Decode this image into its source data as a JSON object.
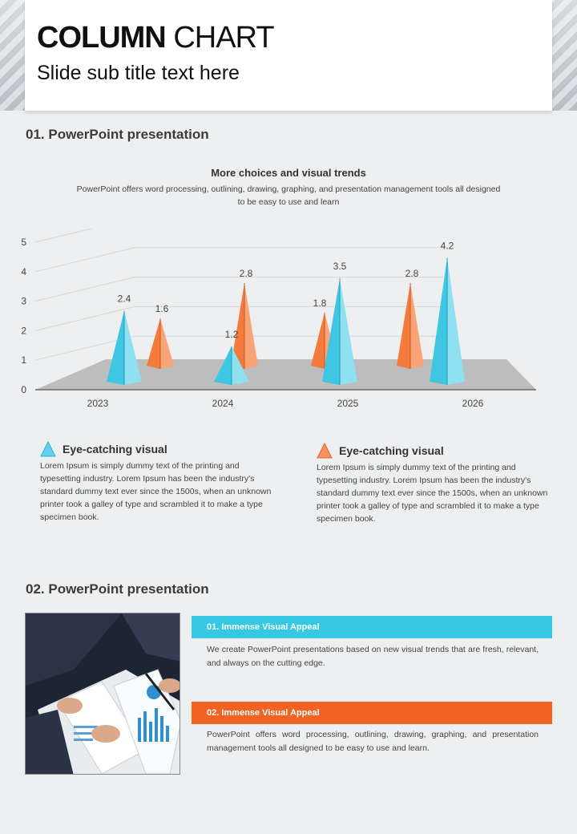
{
  "header": {
    "title_bold": "COLUMN",
    "title_light": "CHART",
    "subtitle": "Slide sub title text here"
  },
  "section1": {
    "heading": "01. PowerPoint presentation",
    "chart_title": "More choices and visual trends",
    "chart_desc": "PowerPoint offers word processing, outlining, drawing, graphing, and presentation management tools all designed to be easy to use and learn"
  },
  "chart_data": {
    "type": "bar",
    "categories": [
      "2023",
      "2024",
      "2025",
      "2026"
    ],
    "series": [
      {
        "values": [
          2.4,
          1.2,
          3.5,
          4.2
        ]
      },
      {
        "values": [
          1.6,
          2.8,
          1.8,
          2.8
        ]
      }
    ],
    "colors": [
      "#3fc8e4",
      "#f47a3c"
    ],
    "ylim": [
      0,
      5
    ],
    "yticks": [
      "0",
      "1",
      "2",
      "3",
      "4",
      "5"
    ],
    "grid": true
  },
  "legends": [
    {
      "heading": "Eye-catching visual",
      "text": "Lorem Ipsum is simply dummy text of the printing and typesetting industry. Lorem Ipsum has been the industry's standard dummy text ever since the 1500s, when an unknown printer took a galley of type and scrambled it to make a type specimen book."
    },
    {
      "heading": "Eye-catching visual",
      "text": "Lorem Ipsum is simply dummy text of the printing and typesetting industry. Lorem Ipsum has been the industry's standard dummy text ever since the 1500s, when an unknown printer took a galley of type and scrambled it to make a type specimen book."
    }
  ],
  "section2": {
    "heading": "02. PowerPoint presentation",
    "items": [
      {
        "title": "01. Immense Visual Appeal",
        "text": "We create PowerPoint presentations based on new visual trends that are fresh, relevant, and always on the cutting edge.",
        "color": "#35c8e3"
      },
      {
        "title": "02. Immense Visual Appeal",
        "text": "PowerPoint offers word processing, outlining, drawing, graphing, and presentation management tools all designed to be easy to use and learn.",
        "color": "#f26222"
      }
    ]
  }
}
